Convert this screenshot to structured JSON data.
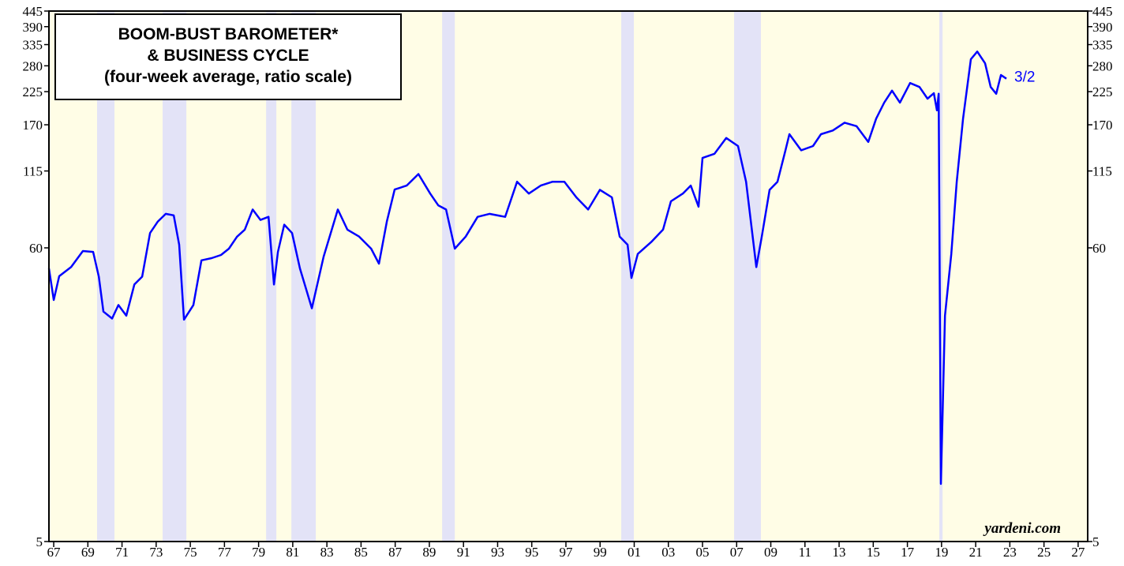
{
  "chart_data": {
    "type": "line",
    "title_lines": [
      "BOOM-BUST BAROMETER*",
      "& BUSINESS CYCLE",
      "(four-week average, ratio scale)"
    ],
    "last_label": "3/2",
    "source": "yardeni.com",
    "log_scale": true,
    "color": "#0000ff",
    "band_color": "#e3e3f7",
    "background": "#fffde6",
    "xlim": [
      1966.72,
      2027.56
    ],
    "ylim": [
      5,
      445
    ],
    "yticks": [
      5,
      60,
      115,
      170,
      225,
      280,
      335,
      390,
      445
    ],
    "xticks": [
      {
        "value": 1967,
        "label": "67"
      },
      {
        "value": 1969,
        "label": "69"
      },
      {
        "value": 1971,
        "label": "71"
      },
      {
        "value": 1973,
        "label": "73"
      },
      {
        "value": 1975,
        "label": "75"
      },
      {
        "value": 1977,
        "label": "77"
      },
      {
        "value": 1979,
        "label": "79"
      },
      {
        "value": 1981,
        "label": "81"
      },
      {
        "value": 1983,
        "label": "83"
      },
      {
        "value": 1985,
        "label": "85"
      },
      {
        "value": 1987,
        "label": "87"
      },
      {
        "value": 1989,
        "label": "89"
      },
      {
        "value": 1991,
        "label": "91"
      },
      {
        "value": 1993,
        "label": "93"
      },
      {
        "value": 1995,
        "label": "95"
      },
      {
        "value": 1997,
        "label": "97"
      },
      {
        "value": 1999,
        "label": "99"
      },
      {
        "value": 2001,
        "label": "01"
      },
      {
        "value": 2003,
        "label": "03"
      },
      {
        "value": 2005,
        "label": "05"
      },
      {
        "value": 2007,
        "label": "07"
      },
      {
        "value": 2009,
        "label": "09"
      },
      {
        "value": 2011,
        "label": "11"
      },
      {
        "value": 2013,
        "label": "13"
      },
      {
        "value": 2015,
        "label": "15"
      },
      {
        "value": 2017,
        "label": "17"
      },
      {
        "value": 2019,
        "label": "19"
      },
      {
        "value": 2021,
        "label": "21"
      },
      {
        "value": 2023,
        "label": "23"
      },
      {
        "value": 2025,
        "label": "25"
      },
      {
        "value": 2027,
        "label": "27"
      }
    ],
    "shaded_periods": [
      [
        1969.54,
        1970.56
      ],
      [
        1973.38,
        1974.77
      ],
      [
        1979.44,
        1980.04
      ],
      [
        1980.92,
        1982.35
      ],
      [
        1989.75,
        1990.49
      ],
      [
        2000.24,
        2000.98
      ],
      [
        2006.85,
        2008.42
      ],
      [
        2018.87,
        2019.06
      ]
    ],
    "x": [
      1966.72,
      1967.0,
      1967.32,
      1968.02,
      1968.71,
      1969.31,
      1969.64,
      1969.91,
      1970.42,
      1970.79,
      1971.25,
      1971.72,
      1972.18,
      1972.64,
      1973.1,
      1973.56,
      1974.03,
      1974.35,
      1974.63,
      1975.18,
      1975.65,
      1976.25,
      1976.8,
      1977.26,
      1977.73,
      1978.19,
      1978.65,
      1979.11,
      1979.58,
      1979.9,
      1980.13,
      1980.5,
      1980.96,
      1981.42,
      1982.12,
      1982.81,
      1983.64,
      1984.2,
      1984.89,
      1985.59,
      1986.05,
      1986.51,
      1986.97,
      1987.67,
      1988.36,
      1989.05,
      1989.52,
      1989.98,
      1990.49,
      1991.13,
      1991.83,
      1992.52,
      1993.44,
      1994.14,
      1994.83,
      1995.52,
      1996.22,
      1996.91,
      1997.61,
      1998.3,
      1998.99,
      1999.69,
      2000.15,
      2000.61,
      2000.84,
      2001.21,
      2001.99,
      2002.69,
      2003.15,
      2003.85,
      2004.31,
      2004.77,
      2005.0,
      2005.7,
      2006.39,
      2007.08,
      2007.55,
      2008.15,
      2008.47,
      2008.93,
      2009.39,
      2009.86,
      2010.09,
      2010.78,
      2011.47,
      2011.94,
      2012.63,
      2013.32,
      2014.02,
      2014.71,
      2015.17,
      2015.64,
      2016.1,
      2016.56,
      2017.16,
      2017.71,
      2018.18,
      2018.55,
      2018.73,
      2018.83,
      2018.96,
      2019.2,
      2019.57,
      2019.89,
      2020.26,
      2020.72,
      2021.09,
      2021.55,
      2021.88,
      2022.2,
      2022.48,
      2022.8
    ],
    "values": [
      50.4,
      38.6,
      47.2,
      51,
      58.4,
      58,
      47,
      35,
      33,
      37,
      33.8,
      44,
      47,
      68,
      75,
      80,
      79,
      61.6,
      32.7,
      37,
      54,
      55,
      56.5,
      59.6,
      65.9,
      70,
      83,
      76,
      78,
      44,
      58,
      73,
      68,
      50.4,
      36,
      55.7,
      83,
      70,
      66,
      59.6,
      52.5,
      75,
      98.3,
      101.6,
      112,
      95,
      86,
      83,
      59.6,
      66,
      78,
      80,
      78,
      105,
      95,
      101.6,
      105,
      105,
      92,
      83,
      98,
      92,
      66,
      61.6,
      46.5,
      57,
      63,
      70,
      89,
      95,
      101.6,
      85,
      128.4,
      133,
      152,
      142,
      105,
      51,
      66,
      98,
      105,
      137,
      157,
      137,
      142,
      157,
      162,
      173,
      168,
      147,
      179,
      205,
      227,
      205,
      242,
      234,
      212,
      222,
      192,
      221,
      8.14,
      33.8,
      57,
      105,
      179,
      296,
      316,
      286,
      234,
      221,
      259,
      251
    ]
  }
}
